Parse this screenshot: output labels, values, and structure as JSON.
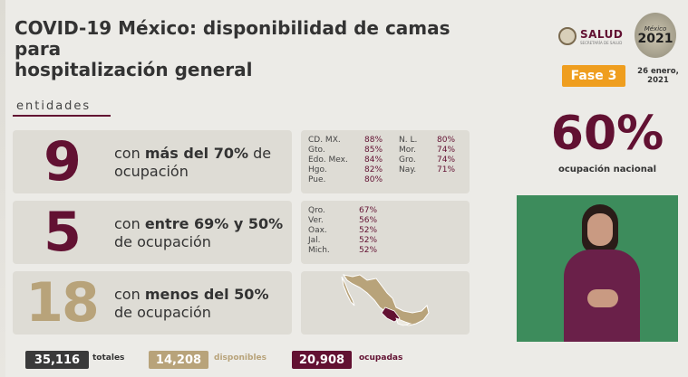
{
  "header": {
    "title_line1": "COVID-19 México: disponibilidad de camas para",
    "title_line2": "hospitalización general",
    "salud_name": "SALUD",
    "salud_sub": "SECRETARÍA DE SALUD",
    "logo_top": "México",
    "logo_year": "2021",
    "fase": "Fase 3",
    "fecha_line1": "26 enero,",
    "fecha_line2": "2021"
  },
  "section_label": "entidades",
  "rows": [
    {
      "number": "9",
      "number_color": "#621132",
      "desc_pre": "con ",
      "desc_bold": "más del 70%",
      "desc_post": " de",
      "desc_line2": "ocupación",
      "col1": [
        {
          "state": "CD. MX.",
          "pct": "88%"
        },
        {
          "state": "Gto.",
          "pct": "85%"
        },
        {
          "state": "Edo. Mex.",
          "pct": "84%"
        },
        {
          "state": "Hgo.",
          "pct": "82%"
        },
        {
          "state": "Pue.",
          "pct": "80%"
        }
      ],
      "col2": [
        {
          "state": "N. L.",
          "pct": "80%"
        },
        {
          "state": "Mor.",
          "pct": "74%"
        },
        {
          "state": "Gro.",
          "pct": "74%"
        },
        {
          "state": "Nay.",
          "pct": "71%"
        }
      ]
    },
    {
      "number": "5",
      "number_color": "#621132",
      "desc_pre": "con ",
      "desc_bold": "entre 69% y 50%",
      "desc_post": "",
      "desc_line2": "de ocupación",
      "col1": [
        {
          "state": "Qro.",
          "pct": "67%"
        },
        {
          "state": "Ver.",
          "pct": "56%"
        },
        {
          "state": "Oax.",
          "pct": "52%"
        },
        {
          "state": "Jal.",
          "pct": "52%"
        },
        {
          "state": "Mich.",
          "pct": "52%"
        }
      ],
      "col2": []
    },
    {
      "number": "18",
      "number_color": "#b8a37a",
      "desc_pre": "con ",
      "desc_bold": "menos del 50%",
      "desc_post": "",
      "desc_line2": "de ocupación"
    }
  ],
  "national": {
    "percent": "60%",
    "label": "ocupación nacional"
  },
  "totals": {
    "total_value": "35,116",
    "total_label": "totales",
    "disponibles_value": "14,208",
    "disponibles_label": "disponibles",
    "ocupadas_value": "20,908",
    "ocupadas_label": "ocupadas"
  },
  "colors": {
    "guinda": "#621132",
    "dorado": "#b8a37a",
    "gris_oscuro": "#3a3a3a",
    "fase": "#ef9e1f"
  }
}
